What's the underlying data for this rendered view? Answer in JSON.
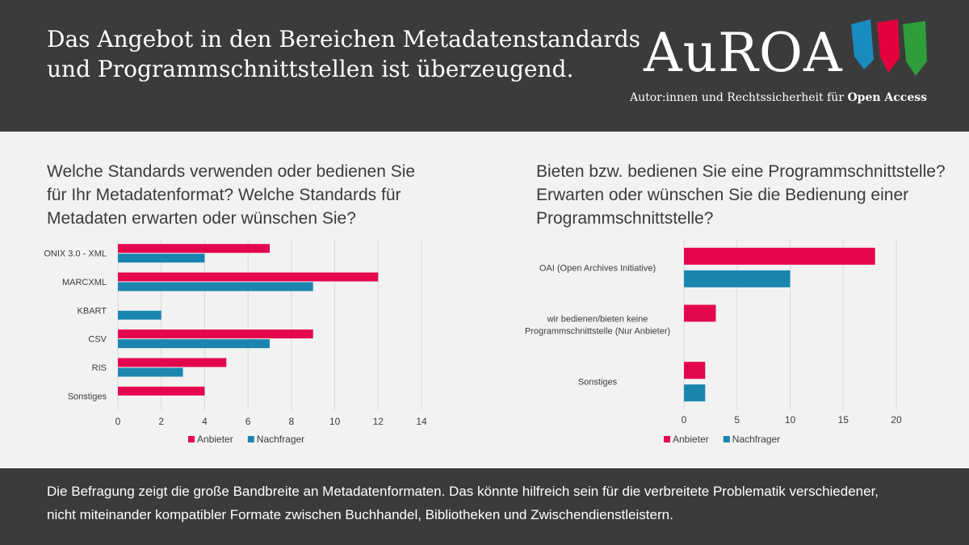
{
  "header": {
    "title_line1": "Das Angebot in den Bereichen Metadatenstandards",
    "title_line2": "und Programmschnittstellen ist überzeugend."
  },
  "logo": {
    "name": "AuROA",
    "tagline_prefix": "Autor:innen und Rechtssicherheit für",
    "tagline_bold": "Open Access",
    "stripe_colors": [
      "#1a8bbf",
      "#e4003b",
      "#2e9d3a"
    ]
  },
  "left_panel": {
    "question_line1": "Welche Standards verwenden oder bedienen Sie",
    "question_line2": "für Ihr Metadatenformat? Welche Standards für",
    "question_line3": "Metadaten erwarten oder wünschen Sie?"
  },
  "right_panel": {
    "question_line1": "Bieten bzw. bedienen Sie eine Programmschnittstelle?",
    "question_line2": "Erwarten oder wünschen Sie die Bedienung einer",
    "question_line3": "Programmschnittstelle?"
  },
  "colors": {
    "anbieter": "#e4064d",
    "nachfrager": "#1a86b0",
    "grid": "#d9d9d9",
    "text": "#3b3b3b"
  },
  "chart_data": [
    {
      "type": "bar",
      "orientation": "horizontal",
      "categories": [
        "ONIX 3.0 - XML",
        "MARCXML",
        "KBART",
        "CSV",
        "RIS",
        "Sonstiges"
      ],
      "series": [
        {
          "name": "Anbieter",
          "values": [
            7,
            12,
            0,
            9,
            5,
            4
          ]
        },
        {
          "name": "Nachfrager",
          "values": [
            4,
            9,
            2,
            7,
            3,
            0
          ]
        }
      ],
      "xlim": [
        0,
        14
      ],
      "xticks": [
        0,
        2,
        4,
        6,
        8,
        10,
        12,
        14
      ],
      "grid": true,
      "legend": "bottom"
    },
    {
      "type": "bar",
      "orientation": "horizontal",
      "categories": [
        [
          "OAI (Open Archives Initiative)"
        ],
        [
          "wir bedienen/bieten keine",
          "Programmschnittstelle (Nur Anbieter)"
        ],
        [
          "Sonstiges"
        ]
      ],
      "series": [
        {
          "name": "Anbieter",
          "values": [
            18,
            3,
            2
          ]
        },
        {
          "name": "Nachfrager",
          "values": [
            10,
            0,
            2
          ]
        }
      ],
      "xlim": [
        0,
        20
      ],
      "xticks": [
        0,
        5,
        10,
        15,
        20
      ],
      "grid": true,
      "legend": "bottom"
    }
  ],
  "footer": {
    "line1": "Die Befragung zeigt die große Bandbreite an Metadatenformaten. Das könnte hilfreich sein für die verbreitete Problematik verschiedener,",
    "line2": "nicht miteinander kompatibler Formate zwischen Buchhandel, Bibliotheken und Zwischendienstleistern."
  }
}
